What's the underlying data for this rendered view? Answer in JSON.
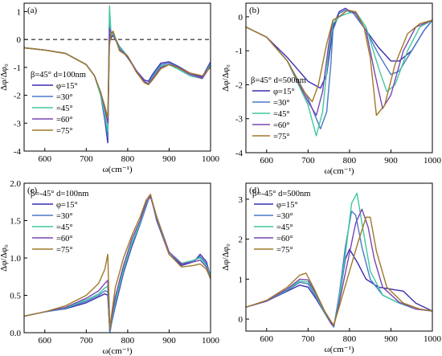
{
  "chart_data": [
    {
      "type": "line",
      "panel": "(a)",
      "legend_title": "β=45° d=100nm",
      "xlabel": "ω(cm⁻¹)",
      "ylabel": "Δφ/Δφ₀",
      "xlim": [
        550,
        1000
      ],
      "ylim": [
        -4,
        1.3
      ],
      "xticks": [
        600,
        700,
        800,
        900,
        1000
      ],
      "yticks": [
        -4,
        -3,
        -2,
        -1,
        0,
        1
      ],
      "zero_line": true,
      "legend_position": "left",
      "series": [
        {
          "name": "φ=15°",
          "color": "#3a2fb0",
          "x": [
            550,
            600,
            650,
            700,
            720,
            735,
            745,
            752,
            756,
            760,
            765,
            780,
            800,
            820,
            840,
            850,
            860,
            880,
            900,
            920,
            950,
            980,
            1000
          ],
          "y": [
            -0.3,
            -0.38,
            -0.5,
            -0.9,
            -1.3,
            -2.0,
            -2.9,
            -3.7,
            0.2,
            0.05,
            0.15,
            -0.3,
            -0.65,
            -1.1,
            -1.45,
            -1.5,
            -1.25,
            -0.85,
            -0.8,
            -0.95,
            -1.2,
            -1.35,
            -0.8
          ]
        },
        {
          "name": "=30°",
          "color": "#4a78c8",
          "x": [
            550,
            600,
            650,
            700,
            720,
            735,
            745,
            752,
            756,
            760,
            765,
            780,
            800,
            820,
            840,
            850,
            860,
            880,
            900,
            920,
            950,
            980,
            1000
          ],
          "y": [
            -0.3,
            -0.38,
            -0.5,
            -0.9,
            -1.3,
            -2.0,
            -2.8,
            -3.5,
            0.6,
            0.1,
            0.2,
            -0.25,
            -0.6,
            -1.1,
            -1.5,
            -1.58,
            -1.3,
            -0.9,
            -0.85,
            -1.0,
            -1.25,
            -1.4,
            -0.85
          ]
        },
        {
          "name": "=45°",
          "color": "#40c8a0",
          "x": [
            550,
            600,
            650,
            700,
            720,
            735,
            745,
            752,
            756,
            760,
            765,
            780,
            800,
            820,
            840,
            850,
            860,
            880,
            900,
            920,
            950,
            980,
            1000
          ],
          "y": [
            -0.3,
            -0.38,
            -0.5,
            -0.9,
            -1.3,
            -2.0,
            -2.7,
            -3.3,
            1.2,
            0.15,
            0.2,
            -0.3,
            -0.6,
            -1.1,
            -1.5,
            -1.6,
            -1.35,
            -0.95,
            -0.9,
            -1.05,
            -1.3,
            -1.4,
            -0.9
          ]
        },
        {
          "name": "=60°",
          "color": "#7a46b4",
          "x": [
            550,
            600,
            650,
            700,
            720,
            735,
            745,
            752,
            756,
            760,
            765,
            780,
            800,
            820,
            840,
            850,
            860,
            880,
            900,
            920,
            950,
            980,
            1000
          ],
          "y": [
            -0.3,
            -0.38,
            -0.5,
            -0.9,
            -1.3,
            -1.9,
            -2.5,
            -3.0,
            0.4,
            0.25,
            0.25,
            -0.35,
            -0.6,
            -1.1,
            -1.5,
            -1.6,
            -1.4,
            -1.0,
            -0.9,
            -1.0,
            -1.25,
            -1.4,
            -0.95
          ]
        },
        {
          "name": "=75°",
          "color": "#a07828",
          "x": [
            550,
            600,
            650,
            700,
            720,
            735,
            745,
            752,
            756,
            760,
            765,
            780,
            800,
            820,
            840,
            850,
            860,
            880,
            900,
            920,
            950,
            980,
            1000
          ],
          "y": [
            -0.3,
            -0.38,
            -0.5,
            -0.9,
            -1.3,
            -1.9,
            -2.4,
            -2.8,
            -0.2,
            0.2,
            0.3,
            -0.4,
            -0.6,
            -1.15,
            -1.55,
            -1.62,
            -1.45,
            -1.05,
            -0.9,
            -1.0,
            -1.2,
            -1.3,
            -1.0
          ]
        }
      ]
    },
    {
      "type": "line",
      "panel": "(b)",
      "legend_title": "β=45° d=500nm",
      "xlabel": "ω(cm⁻¹)",
      "ylabel": "Δφ/Δφ₀",
      "xlim": [
        550,
        1000
      ],
      "ylim": [
        -4,
        0.4
      ],
      "xticks": [
        600,
        700,
        800,
        900,
        1000
      ],
      "yticks": [
        -4,
        -3,
        -2,
        -1,
        0
      ],
      "legend_position": "left",
      "series": [
        {
          "name": "φ=15°",
          "color": "#3a2fb0",
          "x": [
            550,
            600,
            650,
            700,
            730,
            745,
            755,
            760,
            775,
            790,
            810,
            840,
            870,
            900,
            920,
            950,
            980,
            1000
          ],
          "y": [
            -0.3,
            -0.6,
            -1.2,
            -1.9,
            -2.1,
            -1.7,
            -0.8,
            -0.3,
            0.15,
            0.25,
            0.1,
            -0.4,
            -0.9,
            -1.3,
            -1.3,
            -1.0,
            -0.4,
            -0.1
          ]
        },
        {
          "name": "=30°",
          "color": "#4a78c8",
          "x": [
            550,
            600,
            650,
            700,
            730,
            745,
            755,
            760,
            775,
            790,
            810,
            840,
            870,
            900,
            920,
            950,
            980,
            1000
          ],
          "y": [
            -0.3,
            -0.6,
            -1.3,
            -2.4,
            -3.3,
            -2.8,
            -1.4,
            -0.4,
            0.1,
            0.2,
            0.1,
            -0.4,
            -1.1,
            -1.7,
            -1.6,
            -1.0,
            -0.4,
            -0.1
          ]
        },
        {
          "name": "=45°",
          "color": "#40c8a0",
          "x": [
            550,
            600,
            650,
            700,
            720,
            735,
            750,
            760,
            775,
            795,
            815,
            840,
            870,
            890,
            910,
            940,
            970,
            1000
          ],
          "y": [
            -0.3,
            -0.6,
            -1.3,
            -2.6,
            -3.5,
            -2.8,
            -1.0,
            -0.2,
            0.0,
            0.1,
            0.15,
            -0.3,
            -1.5,
            -2.2,
            -2.0,
            -1.0,
            -0.3,
            -0.1
          ]
        },
        {
          "name": "=60°",
          "color": "#7a46b4",
          "x": [
            550,
            600,
            650,
            700,
            720,
            735,
            750,
            760,
            775,
            795,
            815,
            840,
            860,
            880,
            900,
            930,
            960,
            1000
          ],
          "y": [
            -0.3,
            -0.6,
            -1.3,
            -2.5,
            -2.9,
            -2.2,
            -0.8,
            -0.1,
            0.0,
            0.2,
            0.1,
            -0.4,
            -1.6,
            -2.7,
            -2.3,
            -1.0,
            -0.3,
            -0.1
          ]
        },
        {
          "name": "=75°",
          "color": "#a07828",
          "x": [
            550,
            600,
            650,
            690,
            710,
            725,
            745,
            760,
            775,
            795,
            815,
            835,
            850,
            865,
            885,
            910,
            940,
            970,
            1000
          ],
          "y": [
            -0.3,
            -0.6,
            -1.3,
            -2.2,
            -2.5,
            -2.0,
            -0.8,
            -0.1,
            0.0,
            0.2,
            0.15,
            -0.3,
            -1.2,
            -2.9,
            -2.6,
            -1.4,
            -0.5,
            -0.2,
            -0.1
          ]
        }
      ]
    },
    {
      "type": "line",
      "panel": "(c)",
      "legend_title": "β=-45° d=100nm",
      "xlabel": "ω(cm⁻¹)",
      "ylabel": "Δφ/Δφ₀",
      "xlim": [
        550,
        1000
      ],
      "ylim": [
        0,
        2.0
      ],
      "xticks": [
        600,
        700,
        800,
        900,
        1000
      ],
      "yticks": [
        0.0,
        0.5,
        1.0,
        1.5,
        2.0
      ],
      "legend_position": "left",
      "series": [
        {
          "name": "φ=15°",
          "color": "#3a2fb0",
          "x": [
            550,
            600,
            650,
            700,
            730,
            745,
            752,
            757,
            760,
            770,
            790,
            810,
            830,
            845,
            855,
            870,
            900,
            930,
            960,
            975,
            990,
            1000
          ],
          "y": [
            0.22,
            0.28,
            0.32,
            0.4,
            0.48,
            0.52,
            0.5,
            0.0,
            0.1,
            0.35,
            0.8,
            1.15,
            1.45,
            1.7,
            1.85,
            1.5,
            1.05,
            0.9,
            0.95,
            1.05,
            0.95,
            0.75
          ]
        },
        {
          "name": "=30°",
          "color": "#4a78c8",
          "x": [
            550,
            600,
            650,
            700,
            730,
            745,
            752,
            757,
            760,
            770,
            790,
            810,
            830,
            845,
            855,
            870,
            900,
            930,
            960,
            975,
            990,
            1000
          ],
          "y": [
            0.22,
            0.28,
            0.33,
            0.42,
            0.5,
            0.56,
            0.55,
            0.0,
            0.1,
            0.38,
            0.82,
            1.17,
            1.45,
            1.72,
            1.83,
            1.52,
            1.05,
            0.92,
            0.97,
            1.02,
            0.92,
            0.75
          ]
        },
        {
          "name": "=45°",
          "color": "#40c8a0",
          "x": [
            550,
            600,
            650,
            700,
            730,
            745,
            752,
            757,
            760,
            770,
            790,
            810,
            830,
            845,
            855,
            870,
            900,
            930,
            960,
            975,
            990,
            1000
          ],
          "y": [
            0.22,
            0.28,
            0.33,
            0.44,
            0.52,
            0.6,
            0.62,
            0.02,
            0.12,
            0.42,
            0.85,
            1.2,
            1.47,
            1.73,
            1.82,
            1.55,
            1.08,
            0.93,
            0.97,
            1.0,
            0.9,
            0.75
          ]
        },
        {
          "name": "=60°",
          "color": "#7a46b4",
          "x": [
            550,
            600,
            650,
            700,
            730,
            745,
            752,
            757,
            760,
            770,
            790,
            810,
            830,
            845,
            855,
            870,
            900,
            930,
            960,
            975,
            990,
            1000
          ],
          "y": [
            0.22,
            0.28,
            0.34,
            0.46,
            0.56,
            0.66,
            0.7,
            0.03,
            0.15,
            0.48,
            0.9,
            1.25,
            1.5,
            1.75,
            1.82,
            1.55,
            1.08,
            0.92,
            0.95,
            0.97,
            0.88,
            0.72
          ]
        },
        {
          "name": "=75°",
          "color": "#a07828",
          "x": [
            550,
            600,
            650,
            700,
            730,
            745,
            752,
            757,
            760,
            770,
            790,
            810,
            830,
            845,
            855,
            870,
            900,
            930,
            960,
            975,
            990,
            1000
          ],
          "y": [
            0.22,
            0.28,
            0.36,
            0.5,
            0.66,
            0.85,
            1.05,
            0.05,
            0.2,
            0.6,
            1.0,
            1.3,
            1.55,
            1.78,
            1.85,
            1.55,
            1.05,
            0.88,
            0.9,
            0.92,
            0.85,
            0.72
          ]
        }
      ]
    },
    {
      "type": "line",
      "panel": "(d)",
      "legend_title": "β=-45° d=500nm",
      "xlabel": "ω(cm⁻¹)",
      "ylabel": "Δφ/Δφ₀",
      "xlim": [
        550,
        1000
      ],
      "ylim": [
        -0.3,
        3.4
      ],
      "xticks": [
        600,
        700,
        800,
        900,
        1000
      ],
      "yticks": [
        0,
        1,
        2,
        3
      ],
      "legend_position": "upper-left",
      "series": [
        {
          "name": "φ=15°",
          "color": "#3a2fb0",
          "x": [
            550,
            600,
            650,
            680,
            700,
            720,
            740,
            755,
            762,
            775,
            790,
            800,
            820,
            840,
            870,
            900,
            930,
            960,
            1000
          ],
          "y": [
            0.3,
            0.45,
            0.7,
            0.85,
            0.8,
            0.5,
            0.15,
            -0.1,
            -0.2,
            0.5,
            1.5,
            1.75,
            1.4,
            1.0,
            0.8,
            0.75,
            0.7,
            0.4,
            0.2
          ]
        },
        {
          "name": "=30°",
          "color": "#4a78c8",
          "x": [
            550,
            600,
            650,
            680,
            700,
            720,
            740,
            755,
            762,
            775,
            790,
            805,
            815,
            830,
            850,
            880,
            920,
            960,
            1000
          ],
          "y": [
            0.3,
            0.45,
            0.72,
            0.92,
            0.88,
            0.55,
            0.15,
            -0.1,
            -0.2,
            0.6,
            1.8,
            2.7,
            2.6,
            1.8,
            1.0,
            0.6,
            0.4,
            0.25,
            0.2
          ]
        },
        {
          "name": "=45°",
          "color": "#40c8a0",
          "x": [
            550,
            600,
            650,
            680,
            700,
            720,
            740,
            755,
            762,
            775,
            790,
            805,
            818,
            830,
            850,
            880,
            920,
            960,
            1000
          ],
          "y": [
            0.3,
            0.45,
            0.74,
            0.95,
            0.93,
            0.58,
            0.15,
            -0.1,
            -0.2,
            0.5,
            1.6,
            2.9,
            3.15,
            2.4,
            1.2,
            0.6,
            0.4,
            0.25,
            0.2
          ]
        },
        {
          "name": "=60°",
          "color": "#7a46b4",
          "x": [
            550,
            600,
            650,
            680,
            700,
            720,
            740,
            755,
            762,
            775,
            795,
            815,
            830,
            845,
            860,
            880,
            920,
            960,
            1000
          ],
          "y": [
            0.3,
            0.45,
            0.76,
            1.0,
            0.98,
            0.62,
            0.18,
            -0.1,
            -0.18,
            0.4,
            1.4,
            2.4,
            2.75,
            2.3,
            1.5,
            0.8,
            0.42,
            0.25,
            0.2
          ]
        },
        {
          "name": "=75°",
          "color": "#a07828",
          "x": [
            550,
            600,
            650,
            680,
            695,
            715,
            740,
            755,
            762,
            775,
            800,
            820,
            840,
            850,
            865,
            890,
            930,
            970,
            1000
          ],
          "y": [
            0.3,
            0.47,
            0.8,
            1.1,
            1.15,
            0.75,
            0.2,
            -0.05,
            -0.15,
            0.3,
            1.2,
            1.9,
            2.55,
            2.55,
            1.7,
            0.8,
            0.4,
            0.25,
            0.2
          ]
        }
      ]
    }
  ]
}
